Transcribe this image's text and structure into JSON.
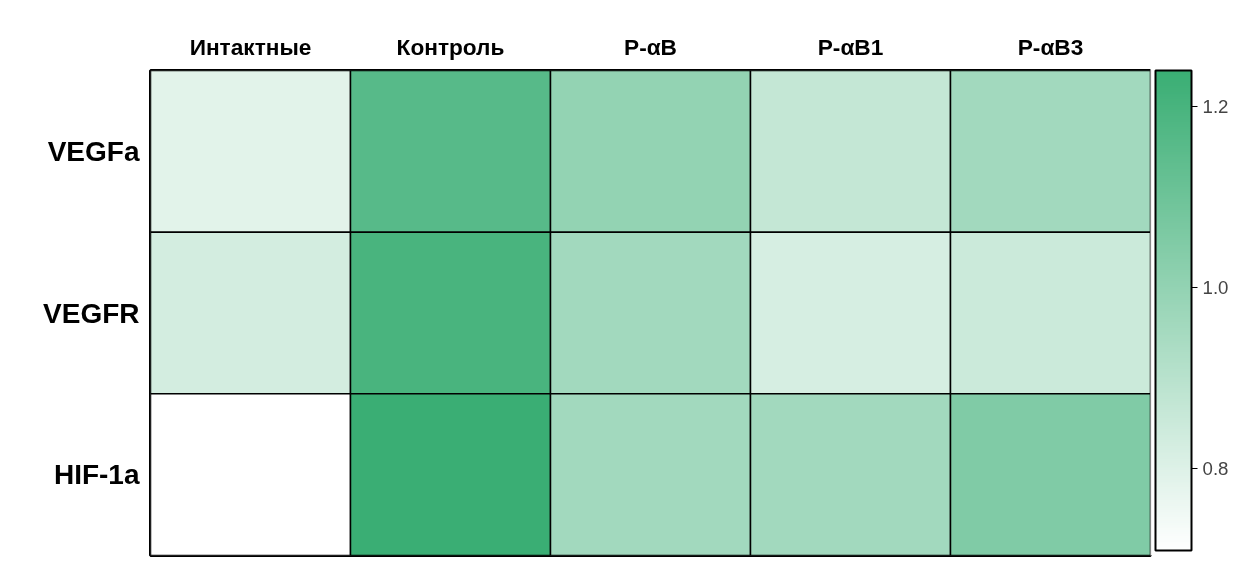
{
  "chart_data": {
    "type": "heatmap",
    "categories": [
      "Интактные",
      "Контроль",
      "P-αB",
      "P-αB1",
      "P-αB3"
    ],
    "y_categories": [
      "VEGFa",
      "VEGFR",
      "HIF-1a"
    ],
    "cells": [
      [
        0.79,
        1.16,
        1.0,
        0.87,
        0.96
      ],
      [
        0.83,
        1.2,
        0.96,
        0.82,
        0.85
      ],
      [
        0.71,
        1.24,
        0.96,
        0.96,
        1.05
      ]
    ],
    "colors": [
      "#ffffff",
      "#3aae74"
    ],
    "clim": [
      0.71,
      1.24
    ],
    "cticks": [
      {
        "value": 0.8,
        "label": "0.8"
      },
      {
        "value": 1.0,
        "label": "1.0"
      },
      {
        "value": 1.2,
        "label": "1.2"
      }
    ]
  }
}
